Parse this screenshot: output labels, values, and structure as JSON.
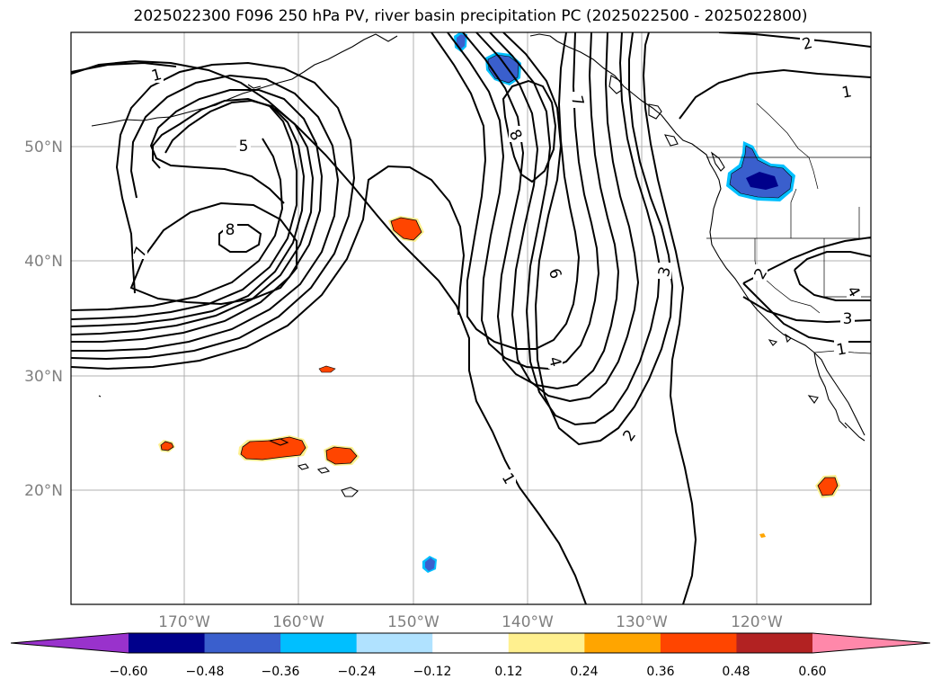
{
  "title": "2025022300 F096 250 hPa PV, river basin precipitation PC (2025022500 - 2025022800)",
  "latitude_labels": [
    "50°N",
    "40°N",
    "30°N",
    "20°N"
  ],
  "longitude_labels": [
    "170°W",
    "160°W",
    "150°W",
    "140°W",
    "130°W",
    "120°W"
  ],
  "colorbar": {
    "tick_labels": [
      "−0.60",
      "−0.48",
      "−0.36",
      "−0.24",
      "−0.12",
      "0.12",
      "0.24",
      "0.36",
      "0.48",
      "0.60"
    ],
    "colors": [
      "#9932cc",
      "#00008b",
      "#3a5fcd",
      "#00bfff",
      "#b0e2ff",
      "#ffffff",
      "#fff08f",
      "#ffa500",
      "#ff4500",
      "#b22222",
      "#ff88aa"
    ]
  },
  "contour_labels": {
    "c1": "1",
    "c2": "2",
    "c3": "3",
    "c4": "4",
    "c5": "5",
    "c6": "6",
    "c7": "7",
    "c8": "8"
  }
}
